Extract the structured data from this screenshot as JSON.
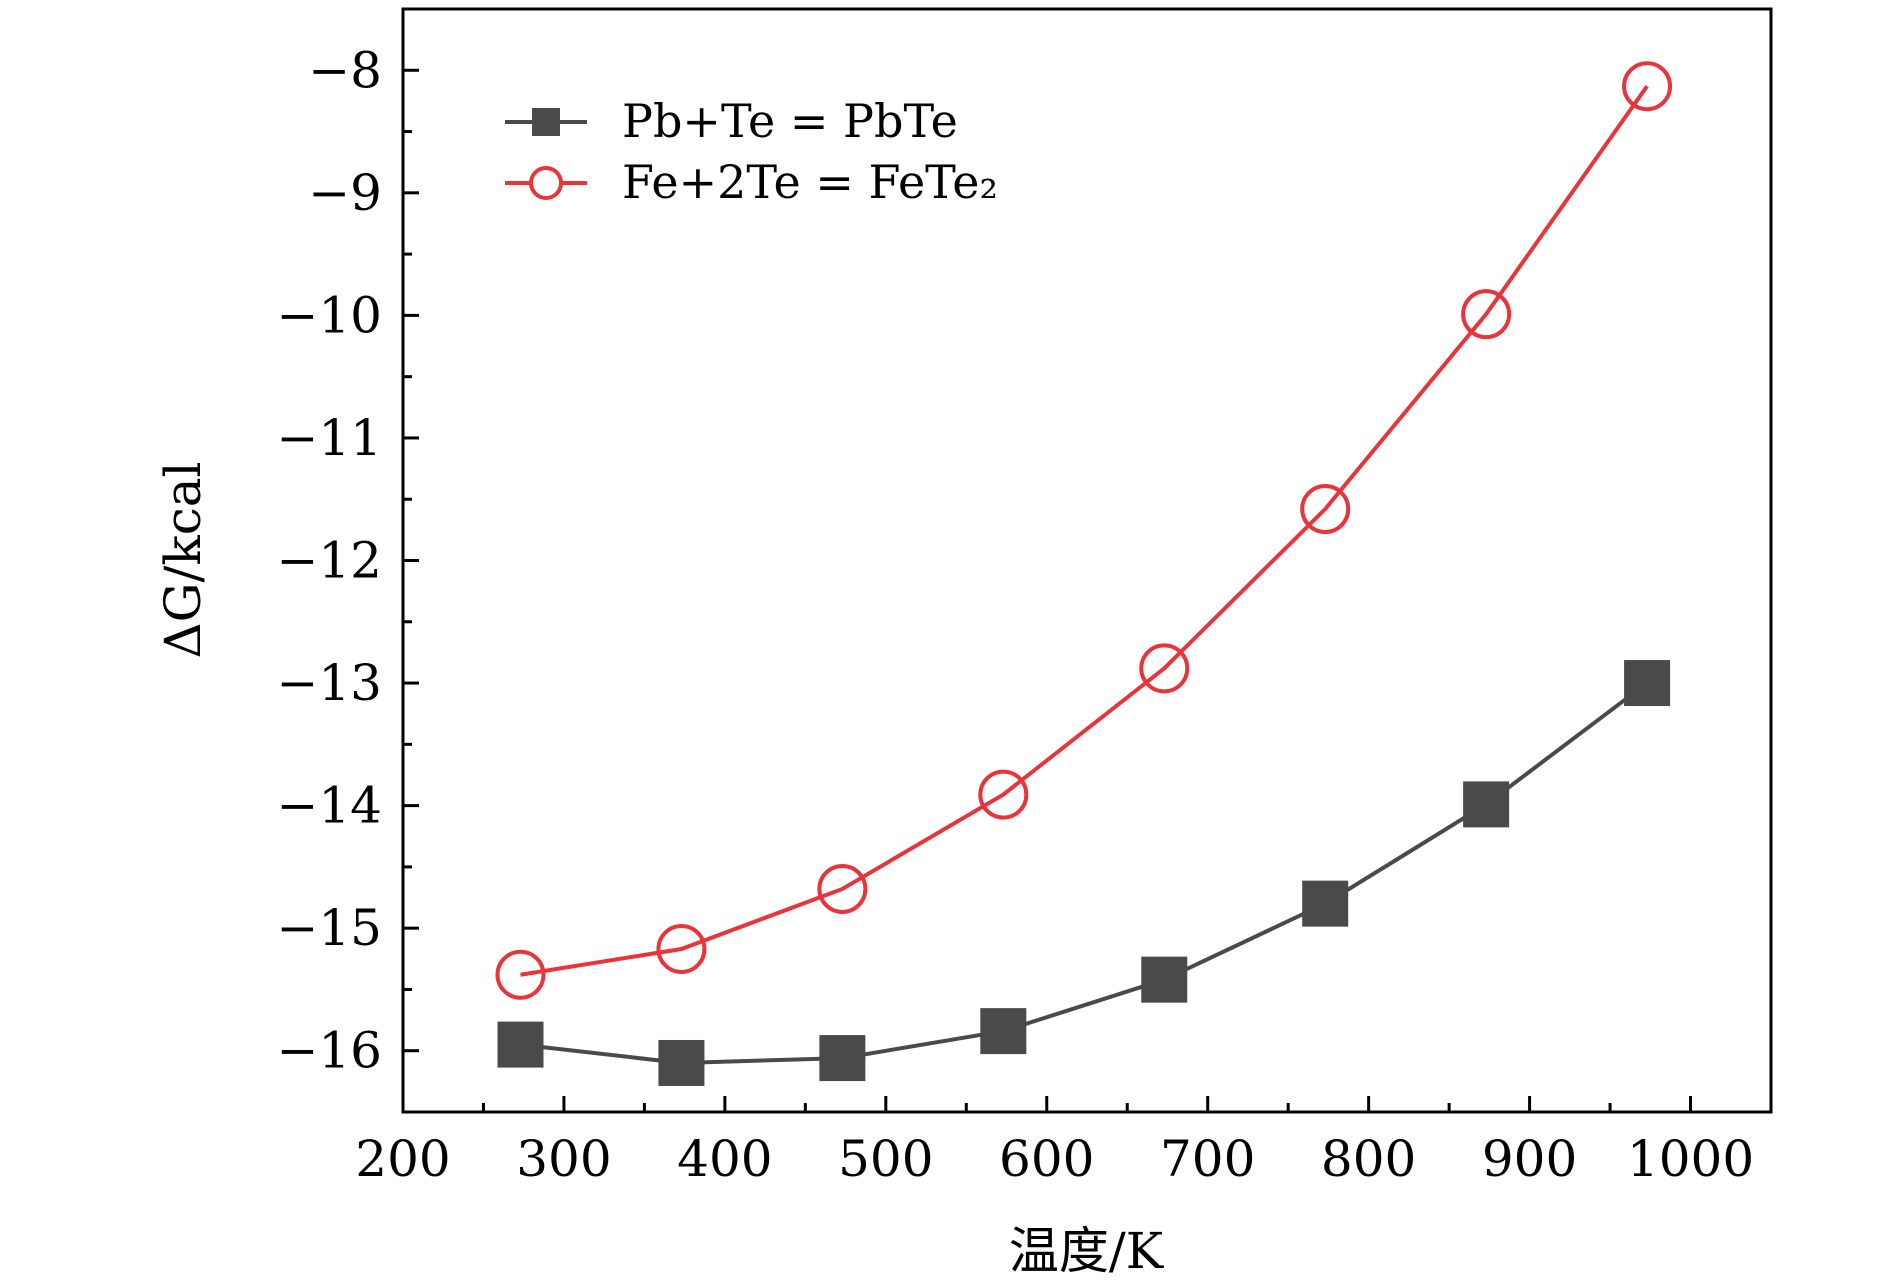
{
  "chart_data": {
    "type": "line",
    "xlabel": "温度/K",
    "ylabel": "ΔG/kcal",
    "xlim": [
      200,
      1050
    ],
    "ylim": [
      -16.5,
      -7.5
    ],
    "xticks": [
      200,
      300,
      400,
      500,
      600,
      700,
      800,
      900,
      1000
    ],
    "yticks": [
      -16,
      -15,
      -14,
      -13,
      -12,
      -11,
      -10,
      -9,
      -8
    ],
    "x_tick_labels": [
      "200",
      "300",
      "400",
      "500",
      "600",
      "700",
      "800",
      "900",
      "1000"
    ],
    "y_tick_labels": [
      "−16",
      "−15",
      "−14",
      "−13",
      "−12",
      "−11",
      "−10",
      "−9",
      "−8"
    ],
    "grid": false,
    "legend_position": "top-left",
    "series": [
      {
        "name": "Pb+Te = PbTe",
        "color": "#4a4a4a",
        "marker": "filled-square",
        "x": [
          273,
          373,
          473,
          573,
          673,
          773,
          873,
          973
        ],
        "y": [
          -15.95,
          -16.1,
          -16.06,
          -15.84,
          -15.42,
          -14.8,
          -13.99,
          -13.0
        ]
      },
      {
        "name": "Fe+2Te = FeTe₂",
        "color": "#e8343b",
        "marker": "open-circle",
        "x": [
          273,
          373,
          473,
          573,
          673,
          773,
          873,
          973
        ],
        "y": [
          -15.38,
          -15.17,
          -14.68,
          -13.91,
          -12.88,
          -11.58,
          -9.99,
          -8.13
        ]
      }
    ]
  }
}
